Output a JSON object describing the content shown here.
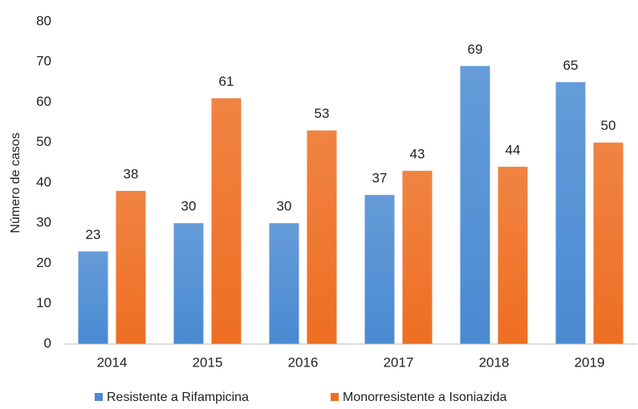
{
  "chart_data": {
    "type": "bar",
    "y_label": "Número de casos",
    "categories": [
      "2014",
      "2015",
      "2016",
      "2017",
      "2018",
      "2019"
    ],
    "series": [
      {
        "name": "Resistente a Rifampicina",
        "color": "#4a8ad2",
        "values": [
          23,
          30,
          30,
          37,
          69,
          65
        ]
      },
      {
        "name": "Monorresistente a Isoniazida",
        "color": "#ee6e22",
        "values": [
          38,
          61,
          53,
          43,
          44,
          50
        ]
      }
    ],
    "ylim": [
      0,
      80
    ],
    "yticks": [
      0,
      10,
      20,
      30,
      40,
      50,
      60,
      70,
      80
    ],
    "grid": false,
    "legend": "bottom"
  }
}
